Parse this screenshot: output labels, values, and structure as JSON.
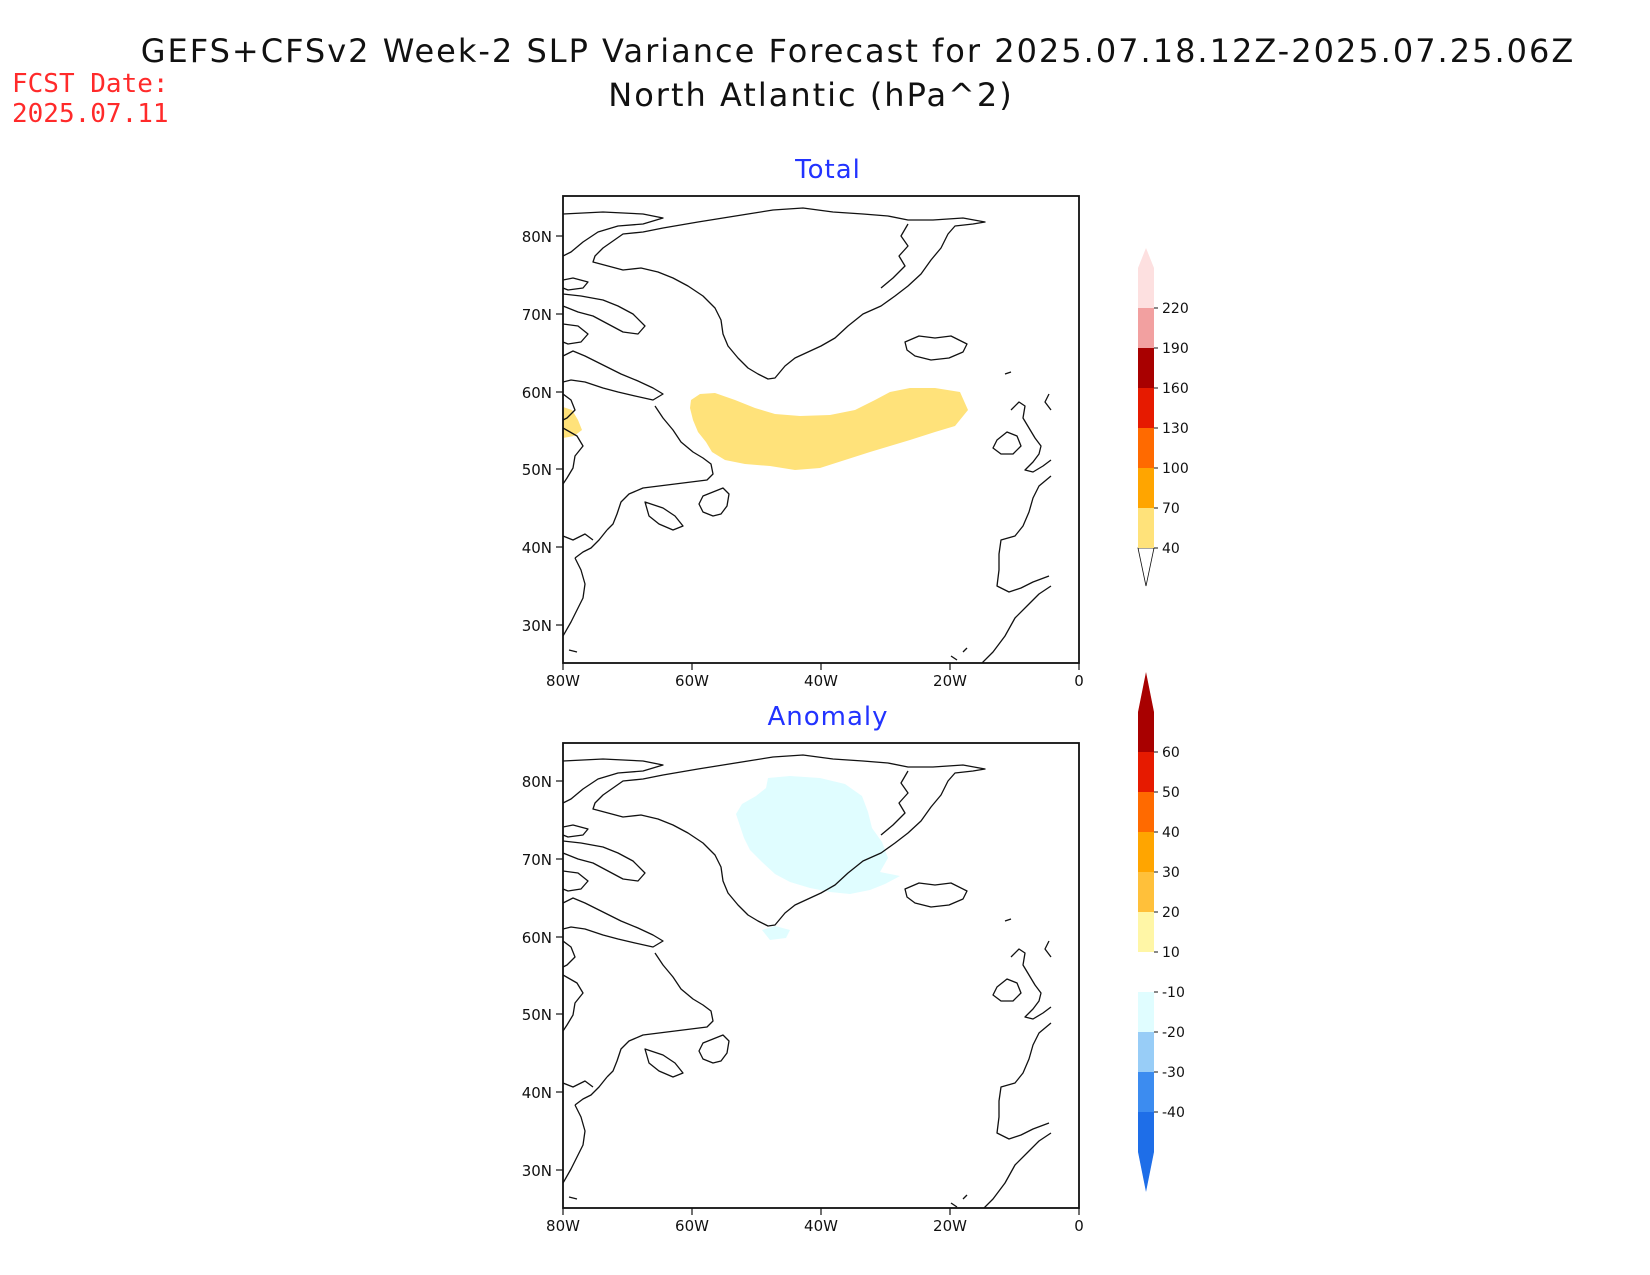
{
  "title": {
    "line1": "GEFS+CFSv2 Week-2 SLP Variance Forecast for 2025.07.18.12Z-2025.07.25.06Z",
    "line2": "North Atlantic (hPa^2)"
  },
  "forecast_date": {
    "label": "FCST Date:",
    "value": "2025.07.11"
  },
  "panels": [
    {
      "id": "total",
      "title": "Total",
      "lat_labels": [
        "80N",
        "70N",
        "60N",
        "50N",
        "40N",
        "30N"
      ],
      "lon_labels": [
        "80W",
        "60W",
        "40W",
        "20W",
        "0"
      ],
      "colorbar": {
        "colors": [
          "#ffe27a",
          "#ffa500",
          "#ff6a00",
          "#e61a00",
          "#a80000",
          "#f2a0a0",
          "#fde0e0"
        ],
        "labels": [
          "40",
          "70",
          "100",
          "130",
          "160",
          "190",
          "220"
        ]
      }
    },
    {
      "id": "anomaly",
      "title": "Anomaly",
      "lat_labels": [
        "80N",
        "70N",
        "60N",
        "50N",
        "40N",
        "30N"
      ],
      "lon_labels": [
        "80W",
        "60W",
        "40W",
        "20W",
        "0"
      ],
      "colorbar": {
        "colors": [
          "#1e6ee8",
          "#3c8cf0",
          "#98cdf7",
          "#e0fdff",
          "#ffffff",
          "#fff6a6",
          "#ffc03a",
          "#ffa500",
          "#ff6a00",
          "#e61a00",
          "#a80000"
        ],
        "labels": [
          "-40",
          "-30",
          "-20",
          "-10",
          "10",
          "20",
          "30",
          "40",
          "50",
          "60"
        ]
      }
    }
  ],
  "map_extent": {
    "lon_range": [
      -80,
      0
    ],
    "lat_range": [
      25,
      85
    ]
  }
}
